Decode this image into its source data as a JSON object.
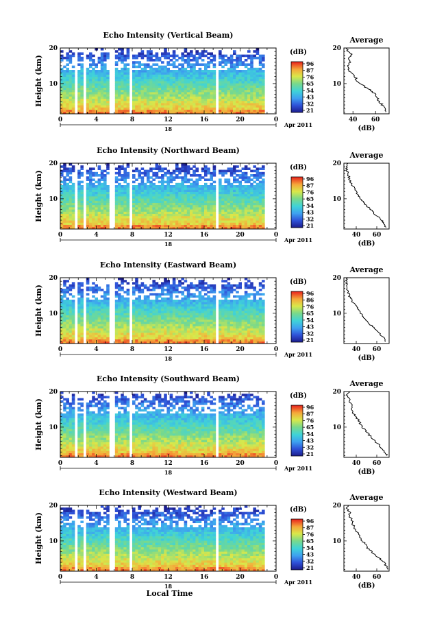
{
  "chart_data": [
    {
      "type": "heatmap",
      "title": "Echo Intensity (Vertical Beam)",
      "ylabel": "Height (km)",
      "x_ticks": [
        "0",
        "4",
        "8",
        "12",
        "16",
        "20",
        "0"
      ],
      "xlim": [
        0,
        24
      ],
      "y_ticks": [
        "10",
        "20"
      ],
      "ylim": [
        1.5,
        20
      ],
      "date_tick": "18",
      "date_label": "Apr 2011",
      "colorbar": {
        "unit": "(dB)",
        "ticks": [
          "96",
          "87",
          "76",
          "65",
          "54",
          "43",
          "32",
          "21"
        ],
        "range": [
          21,
          96
        ]
      },
      "data_gaps_hours": [
        [
          1.7,
          2.0
        ],
        [
          2.6,
          3.0
        ],
        [
          5.5,
          6.2
        ],
        [
          7.7,
          8.0
        ],
        [
          17.2,
          17.6
        ],
        [
          22.6,
          24.0
        ]
      ],
      "average": {
        "title": "Average",
        "xlabel": "(dB)",
        "x_ticks": [
          "40",
          "60"
        ],
        "xlim": [
          32,
          72
        ],
        "y_ticks": [
          "10",
          "20"
        ],
        "ylim": [
          1.5,
          20
        ],
        "profile": [
          [
            2,
            69
          ],
          [
            3,
            68
          ],
          [
            4,
            66
          ],
          [
            5,
            63
          ],
          [
            6,
            62
          ],
          [
            7,
            60
          ],
          [
            8,
            56
          ],
          [
            9,
            51
          ],
          [
            10,
            46
          ],
          [
            11,
            43
          ],
          [
            12,
            42
          ],
          [
            13,
            38
          ],
          [
            14,
            36
          ],
          [
            15,
            35
          ],
          [
            16,
            37
          ],
          [
            17,
            36
          ],
          [
            18,
            39
          ],
          [
            19,
            36
          ],
          [
            20,
            34
          ]
        ]
      }
    },
    {
      "type": "heatmap",
      "title": "Echo Intensity (Northward Beam)",
      "ylabel": "Height (km)",
      "x_ticks": [
        "0",
        "4",
        "8",
        "12",
        "16",
        "20",
        "0"
      ],
      "xlim": [
        0,
        24
      ],
      "y_ticks": [
        "10",
        "20"
      ],
      "ylim": [
        1.5,
        20
      ],
      "date_tick": "18",
      "date_label": "Apr 2011",
      "colorbar": {
        "unit": "(dB)",
        "ticks": [
          "96",
          "87",
          "76",
          "65",
          "54",
          "43",
          "32",
          "21"
        ],
        "range": [
          21,
          96
        ]
      },
      "data_gaps_hours": [
        [
          1.7,
          2.0
        ],
        [
          2.6,
          3.0
        ],
        [
          5.5,
          6.2
        ],
        [
          7.7,
          8.0
        ],
        [
          17.2,
          17.6
        ],
        [
          22.6,
          24.0
        ]
      ],
      "average": {
        "title": "Average",
        "xlabel": "(dB)",
        "x_ticks": [
          "40",
          "60"
        ],
        "xlim": [
          28,
          72
        ],
        "y_ticks": [
          "10",
          "20"
        ],
        "ylim": [
          1.5,
          20
        ],
        "profile": [
          [
            2,
            69
          ],
          [
            3,
            67
          ],
          [
            4,
            65
          ],
          [
            5,
            61
          ],
          [
            6,
            57
          ],
          [
            7,
            54
          ],
          [
            8,
            50
          ],
          [
            9,
            47
          ],
          [
            10,
            44
          ],
          [
            11,
            42
          ],
          [
            12,
            40
          ],
          [
            13,
            38
          ],
          [
            14,
            36
          ],
          [
            15,
            34
          ],
          [
            16,
            33
          ],
          [
            17,
            32
          ],
          [
            18,
            31
          ],
          [
            19,
            30
          ],
          [
            20,
            32
          ]
        ]
      }
    },
    {
      "type": "heatmap",
      "title": "Echo Intensity (Eastward Beam)",
      "ylabel": "Height (km)",
      "x_ticks": [
        "0",
        "4",
        "8",
        "12",
        "16",
        "20",
        "0"
      ],
      "xlim": [
        0,
        24
      ],
      "y_ticks": [
        "10",
        "20"
      ],
      "ylim": [
        1.5,
        20
      ],
      "date_tick": "18",
      "date_label": "Apr 2011",
      "colorbar": {
        "unit": "(dB)",
        "ticks": [
          "96",
          "86",
          "76",
          "65",
          "54",
          "43",
          "32",
          "21"
        ],
        "range": [
          21,
          96
        ]
      },
      "data_gaps_hours": [
        [
          1.7,
          2.0
        ],
        [
          2.6,
          3.0
        ],
        [
          5.5,
          6.2
        ],
        [
          7.7,
          8.0
        ],
        [
          17.2,
          17.6
        ],
        [
          22.6,
          24.0
        ]
      ],
      "average": {
        "title": "Average",
        "xlabel": "(dB)",
        "x_ticks": [
          "40",
          "60"
        ],
        "xlim": [
          28,
          72
        ],
        "y_ticks": [
          "10",
          "20"
        ],
        "ylim": [
          1.5,
          20
        ],
        "profile": [
          [
            2,
            69
          ],
          [
            3,
            67
          ],
          [
            4,
            64
          ],
          [
            5,
            61
          ],
          [
            6,
            57
          ],
          [
            7,
            53
          ],
          [
            8,
            50
          ],
          [
            9,
            47
          ],
          [
            10,
            44
          ],
          [
            11,
            42
          ],
          [
            12,
            40
          ],
          [
            13,
            37
          ],
          [
            14,
            35
          ],
          [
            15,
            33
          ],
          [
            16,
            32
          ],
          [
            17,
            31
          ],
          [
            18,
            31
          ],
          [
            19,
            30
          ],
          [
            20,
            32
          ]
        ]
      }
    },
    {
      "type": "heatmap",
      "title": "Echo Intensity (Southward Beam)",
      "ylabel": "Height (km)",
      "x_ticks": [
        "0",
        "4",
        "8",
        "12",
        "16",
        "20",
        "0"
      ],
      "xlim": [
        0,
        24
      ],
      "y_ticks": [
        "10",
        "20"
      ],
      "ylim": [
        1.5,
        20
      ],
      "date_tick": "18",
      "date_label": "Apr 2011",
      "colorbar": {
        "unit": "(dB)",
        "ticks": [
          "96",
          "87",
          "76",
          "65",
          "54",
          "43",
          "32",
          "21"
        ],
        "range": [
          21,
          96
        ]
      },
      "data_gaps_hours": [
        [
          1.7,
          2.0
        ],
        [
          2.6,
          3.0
        ],
        [
          5.5,
          6.2
        ],
        [
          7.7,
          8.0
        ],
        [
          17.2,
          17.6
        ],
        [
          22.6,
          24.0
        ]
      ],
      "average": {
        "title": "Average",
        "xlabel": "(dB)",
        "x_ticks": [
          "40",
          "60"
        ],
        "xlim": [
          28,
          72
        ],
        "y_ticks": [
          "10",
          "20"
        ],
        "ylim": [
          1.5,
          20
        ],
        "profile": [
          [
            2,
            70
          ],
          [
            3,
            68
          ],
          [
            4,
            65
          ],
          [
            5,
            62
          ],
          [
            6,
            58
          ],
          [
            7,
            55
          ],
          [
            8,
            52
          ],
          [
            9,
            49
          ],
          [
            10,
            46
          ],
          [
            11,
            44
          ],
          [
            12,
            42
          ],
          [
            13,
            39
          ],
          [
            14,
            37
          ],
          [
            15,
            35
          ],
          [
            16,
            36
          ],
          [
            17,
            34
          ],
          [
            18,
            33
          ],
          [
            19,
            31
          ],
          [
            20,
            33
          ]
        ]
      }
    },
    {
      "type": "heatmap",
      "title": "Echo Intensity (Westward Beam)",
      "ylabel": "Height (km)",
      "x_ticks": [
        "0",
        "4",
        "8",
        "12",
        "16",
        "20",
        "0"
      ],
      "xlim": [
        0,
        24
      ],
      "y_ticks": [
        "10",
        "20"
      ],
      "ylim": [
        1.5,
        20
      ],
      "date_tick": "18",
      "date_label": "Apr 2011",
      "xlabel": "Local Time",
      "colorbar": {
        "unit": "(dB)",
        "ticks": [
          "96",
          "87",
          "76",
          "65",
          "54",
          "43",
          "32",
          "21"
        ],
        "range": [
          21,
          96
        ]
      },
      "data_gaps_hours": [
        [
          1.7,
          2.0
        ],
        [
          2.6,
          3.0
        ],
        [
          5.5,
          6.2
        ],
        [
          7.7,
          8.0
        ],
        [
          17.2,
          17.6
        ],
        [
          22.6,
          24.0
        ]
      ],
      "average": {
        "title": "Average",
        "xlabel": "(dB)",
        "x_ticks": [
          "40",
          "60"
        ],
        "xlim": [
          28,
          72
        ],
        "y_ticks": [
          "10",
          "20"
        ],
        "ylim": [
          1.5,
          20
        ],
        "profile": [
          [
            2,
            70
          ],
          [
            3,
            69
          ],
          [
            4,
            67
          ],
          [
            5,
            63
          ],
          [
            6,
            59
          ],
          [
            7,
            55
          ],
          [
            8,
            51
          ],
          [
            9,
            49
          ],
          [
            10,
            46
          ],
          [
            11,
            43
          ],
          [
            12,
            42
          ],
          [
            13,
            39
          ],
          [
            14,
            38
          ],
          [
            15,
            36
          ],
          [
            16,
            36
          ],
          [
            17,
            33
          ],
          [
            18,
            34
          ],
          [
            19,
            31
          ],
          [
            20,
            32
          ]
        ]
      }
    }
  ]
}
